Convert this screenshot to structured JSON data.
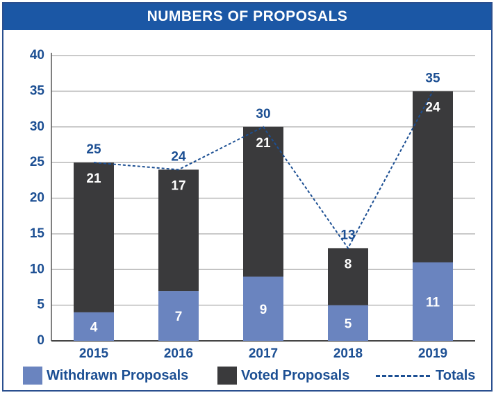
{
  "chart_data": {
    "type": "bar",
    "title": "NUMBERS OF PROPOSALS",
    "categories": [
      "2015",
      "2016",
      "2017",
      "2018",
      "2019"
    ],
    "series": [
      {
        "name": "Withdrawn Proposals",
        "values": [
          4,
          7,
          9,
          5,
          11
        ],
        "labels": [
          "4",
          "7",
          "9",
          "5",
          "11"
        ],
        "color": "#6a84bf"
      },
      {
        "name": "Voted Proposals",
        "values": [
          21,
          17,
          21,
          8,
          24
        ],
        "labels": [
          "21",
          "17",
          "21",
          "8",
          "24"
        ],
        "color": "#3a3a3c"
      }
    ],
    "totals": {
      "name": "Totals",
      "values": [
        25,
        24,
        30,
        13,
        35
      ],
      "labels": [
        "25",
        "24",
        "30",
        "13",
        "35"
      ],
      "style": "dashed-line",
      "color": "#1c4f93"
    },
    "y_ticks": [
      "0",
      "5",
      "10",
      "15",
      "20",
      "25",
      "30",
      "35",
      "40"
    ],
    "ylim": [
      0,
      40
    ],
    "grid": true,
    "legend_position": "bottom",
    "accent_color": "#1b57a5"
  }
}
